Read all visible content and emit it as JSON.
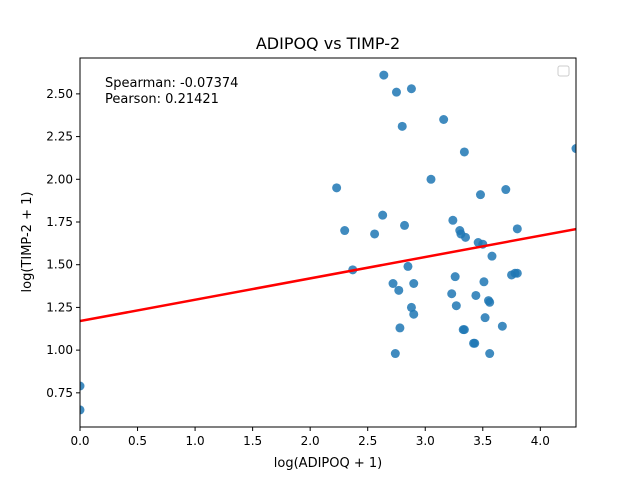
{
  "chart_data": {
    "type": "scatter",
    "title": "ADIPOQ vs TIMP-2",
    "xlabel": "log(ADIPOQ + 1)",
    "ylabel": "log(TIMP-2 + 1)",
    "xlim": [
      0,
      4.31
    ],
    "ylim": [
      0.55,
      2.71
    ],
    "x_ticks": [
      0.0,
      0.5,
      1.0,
      1.5,
      2.0,
      2.5,
      3.0,
      3.5,
      4.0
    ],
    "x_tick_labels": [
      "0.0",
      "0.5",
      "1.0",
      "1.5",
      "2.0",
      "2.5",
      "3.0",
      "3.5",
      "4.0"
    ],
    "y_ticks": [
      0.75,
      1.0,
      1.25,
      1.5,
      1.75,
      2.0,
      2.25,
      2.5
    ],
    "y_tick_labels": [
      "0.75",
      "1.00",
      "1.25",
      "1.50",
      "1.75",
      "2.00",
      "2.25",
      "2.50"
    ],
    "grid": false,
    "legend": "top-right (empty box)",
    "annotations": [
      "Spearman: -0.07374",
      "Pearson: 0.21421"
    ],
    "point_color": "#1f77b4",
    "line_color": "#ff0000",
    "regression_line": {
      "intercept": 1.17,
      "slope": 0.125
    },
    "points": [
      {
        "x": 0.0,
        "y": 0.79
      },
      {
        "x": 0.0,
        "y": 0.65
      },
      {
        "x": 2.23,
        "y": 1.95
      },
      {
        "x": 2.3,
        "y": 1.7
      },
      {
        "x": 2.37,
        "y": 1.47
      },
      {
        "x": 2.56,
        "y": 1.68
      },
      {
        "x": 2.63,
        "y": 1.79
      },
      {
        "x": 2.64,
        "y": 2.61
      },
      {
        "x": 2.72,
        "y": 1.39
      },
      {
        "x": 2.74,
        "y": 0.98
      },
      {
        "x": 2.75,
        "y": 2.51
      },
      {
        "x": 2.77,
        "y": 1.35
      },
      {
        "x": 2.78,
        "y": 1.13
      },
      {
        "x": 2.8,
        "y": 2.31
      },
      {
        "x": 2.82,
        "y": 1.73
      },
      {
        "x": 2.85,
        "y": 1.49
      },
      {
        "x": 2.88,
        "y": 2.53
      },
      {
        "x": 2.88,
        "y": 1.25
      },
      {
        "x": 2.9,
        "y": 1.21
      },
      {
        "x": 2.9,
        "y": 1.39
      },
      {
        "x": 3.05,
        "y": 2.0
      },
      {
        "x": 3.16,
        "y": 2.35
      },
      {
        "x": 3.23,
        "y": 1.33
      },
      {
        "x": 3.24,
        "y": 1.76
      },
      {
        "x": 3.26,
        "y": 1.43
      },
      {
        "x": 3.27,
        "y": 1.26
      },
      {
        "x": 3.3,
        "y": 1.7
      },
      {
        "x": 3.31,
        "y": 1.68
      },
      {
        "x": 3.33,
        "y": 1.12
      },
      {
        "x": 3.34,
        "y": 2.16
      },
      {
        "x": 3.34,
        "y": 1.12
      },
      {
        "x": 3.35,
        "y": 1.66
      },
      {
        "x": 3.42,
        "y": 1.04
      },
      {
        "x": 3.43,
        "y": 1.04
      },
      {
        "x": 3.44,
        "y": 1.32
      },
      {
        "x": 3.46,
        "y": 1.63
      },
      {
        "x": 3.48,
        "y": 1.91
      },
      {
        "x": 3.5,
        "y": 1.62
      },
      {
        "x": 3.51,
        "y": 1.4
      },
      {
        "x": 3.52,
        "y": 1.19
      },
      {
        "x": 3.55,
        "y": 1.29
      },
      {
        "x": 3.56,
        "y": 1.28
      },
      {
        "x": 3.56,
        "y": 0.98
      },
      {
        "x": 3.58,
        "y": 1.55
      },
      {
        "x": 3.67,
        "y": 1.14
      },
      {
        "x": 3.7,
        "y": 1.94
      },
      {
        "x": 3.75,
        "y": 1.44
      },
      {
        "x": 3.78,
        "y": 1.45
      },
      {
        "x": 3.8,
        "y": 1.45
      },
      {
        "x": 3.8,
        "y": 1.71
      },
      {
        "x": 4.31,
        "y": 2.18
      }
    ]
  }
}
